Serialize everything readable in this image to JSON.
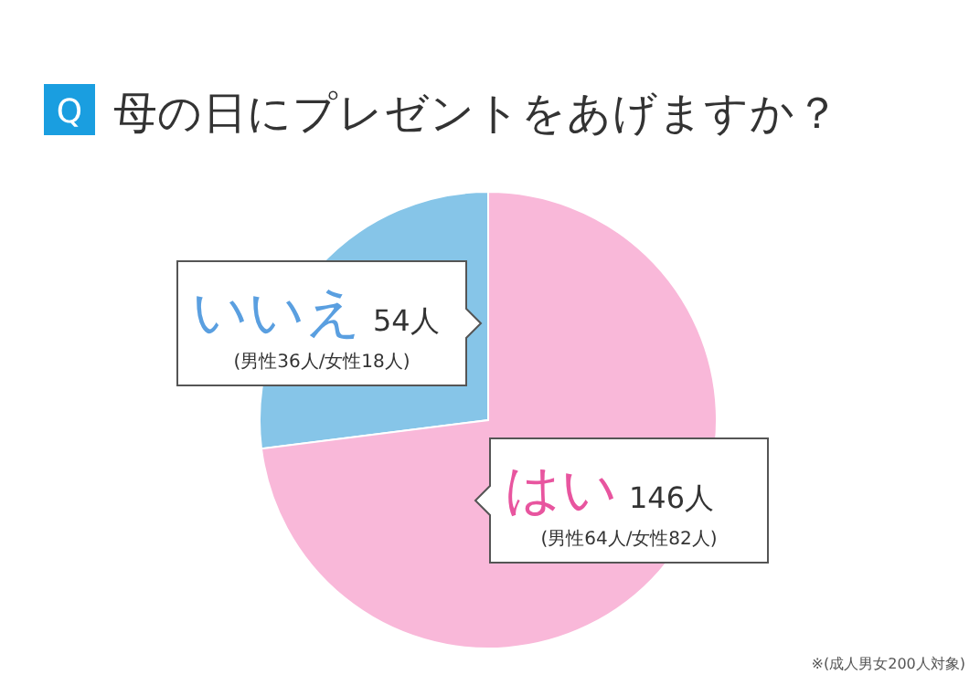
{
  "chart_data": {
    "type": "pie",
    "title": "母の日にプレゼントをあげますか？",
    "categories": [
      "いいえ",
      "はい"
    ],
    "values": [
      54,
      146
    ],
    "colors": [
      "#86c5e8",
      "#f9b8d9"
    ],
    "value_labels": [
      "54人",
      "146人"
    ],
    "annotations": [
      "Q",
      {
        "text": "(男性36人/女性18人)",
        "x": "いいえ"
      },
      {
        "text": "(男性64人/女性82人)",
        "x": "はい"
      },
      "※(成人男女200人対象)"
    ]
  }
}
